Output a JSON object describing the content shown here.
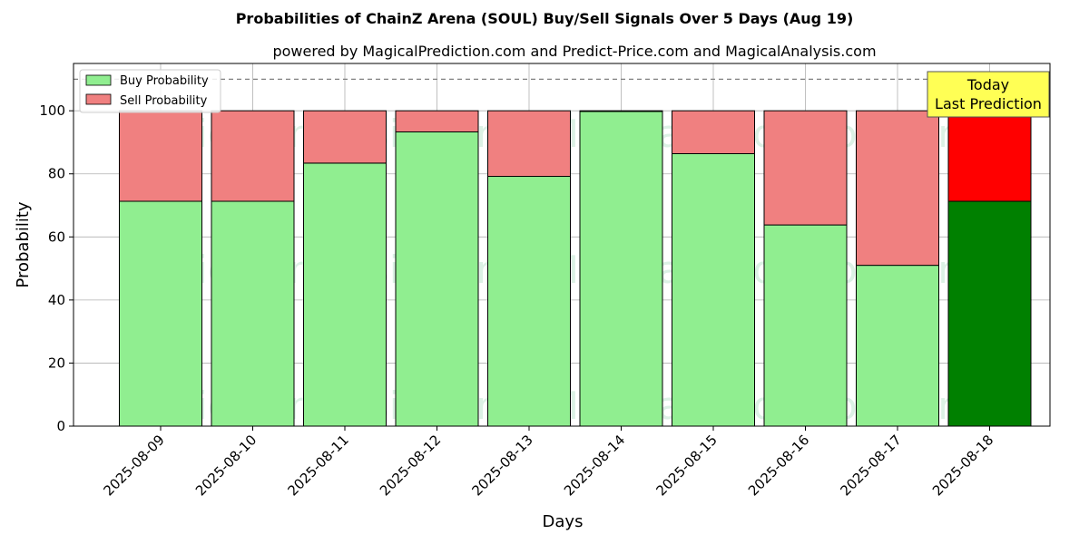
{
  "chart_data": {
    "type": "bar",
    "stacked": true,
    "title": "Probabilities of ChainZ Arena (SOUL) Buy/Sell Signals Over 5 Days (Aug 19)",
    "subtitle": "powered by MagicalPrediction.com and Predict-Price.com and MagicalAnalysis.com",
    "xlabel": "Days",
    "ylabel": "Probability",
    "ylim": [
      0,
      115
    ],
    "yticks": [
      0,
      20,
      40,
      60,
      80,
      100
    ],
    "grid": true,
    "reference_line": 110,
    "categories": [
      "2025-08-09",
      "2025-08-10",
      "2025-08-11",
      "2025-08-12",
      "2025-08-13",
      "2025-08-14",
      "2025-08-15",
      "2025-08-16",
      "2025-08-17",
      "2025-08-18"
    ],
    "series": [
      {
        "name": "Buy Probability",
        "values": [
          71.3,
          71.3,
          83.4,
          93.3,
          79.2,
          99.8,
          86.4,
          63.8,
          51.0,
          71.3
        ],
        "color": "#90ee90",
        "highlight_color": "#008000"
      },
      {
        "name": "Sell Probability",
        "values": [
          28.7,
          28.7,
          16.6,
          6.7,
          20.8,
          0.2,
          13.6,
          36.2,
          49.0,
          28.7
        ],
        "color": "#f08080",
        "highlight_color": "#ff0000"
      }
    ],
    "highlight_index": 9,
    "legend_position": "top-left",
    "annotation": {
      "lines": [
        "Today",
        "Last Prediction"
      ],
      "background": "#ffff55"
    },
    "watermarks": [
      "MagicalAnalysis.com",
      "MagicalPrediction.com"
    ]
  }
}
